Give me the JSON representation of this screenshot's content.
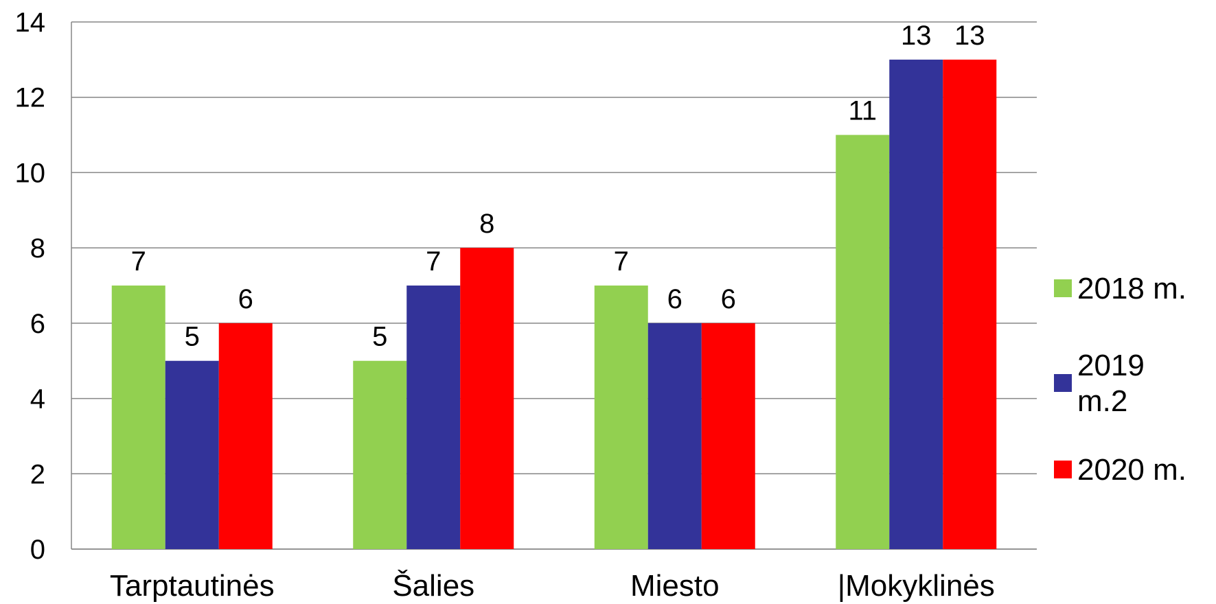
{
  "chart_data": {
    "type": "bar",
    "title": "",
    "xlabel": "",
    "ylabel": "",
    "categories": [
      "Tarptautinės",
      "Šalies",
      "Miesto",
      "|Mokyklinės"
    ],
    "series": [
      {
        "name": "2018 m.",
        "name_lines": [
          "2018 m."
        ],
        "color": "#92D050",
        "values": [
          7,
          5,
          7,
          11
        ]
      },
      {
        "name": "2019 m.2",
        "name_lines": [
          "2019",
          "m.2"
        ],
        "color": "#333399",
        "values": [
          5,
          7,
          6,
          13
        ]
      },
      {
        "name": "2020 m.",
        "name_lines": [
          "2020 m."
        ],
        "color": "#FF0000",
        "values": [
          6,
          8,
          6,
          13
        ]
      }
    ],
    "ylim": [
      0,
      14
    ],
    "yticks": [
      0,
      2,
      4,
      6,
      8,
      10,
      12,
      14
    ],
    "grid": true,
    "legend_position": "right",
    "data_labels": true
  }
}
